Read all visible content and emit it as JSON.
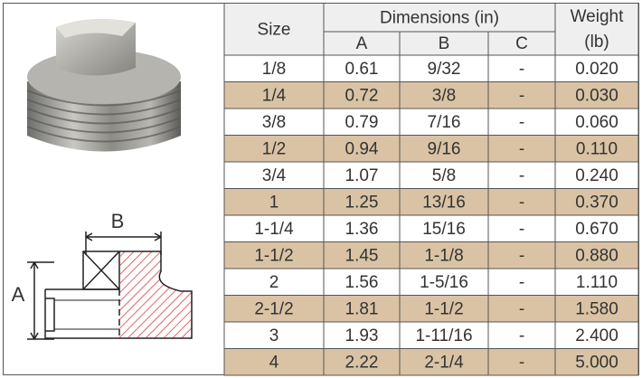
{
  "diagram": {
    "label_a": "A",
    "label_b": "B"
  },
  "table": {
    "header": {
      "size": "Size",
      "dimensions": "Dimensions (in)",
      "a": "A",
      "b": "B",
      "c": "C",
      "weight_line1": "Weight",
      "weight_line2": "(lb)"
    },
    "rows": [
      [
        "1/8",
        "0.61",
        "9/32",
        "-",
        "0.020"
      ],
      [
        "1/4",
        "0.72",
        "3/8",
        "-",
        "0.030"
      ],
      [
        "3/8",
        "0.79",
        "7/16",
        "-",
        "0.060"
      ],
      [
        "1/2",
        "0.94",
        "9/16",
        "-",
        "0.110"
      ],
      [
        "3/4",
        "1.07",
        "5/8",
        "-",
        "0.240"
      ],
      [
        "1",
        "1.25",
        "13/16",
        "-",
        "0.370"
      ],
      [
        "1-1/4",
        "1.36",
        "15/16",
        "-",
        "0.670"
      ],
      [
        "1-1/2",
        "1.45",
        "1-1/8",
        "-",
        "0.880"
      ],
      [
        "2",
        "1.56",
        "1-5/16",
        "-",
        "1.110"
      ],
      [
        "2-1/2",
        "1.81",
        "1-1/2",
        "-",
        "1.580"
      ],
      [
        "3",
        "1.93",
        "1-11/16",
        "-",
        "2.400"
      ],
      [
        "4",
        "2.22",
        "2-1/4",
        "-",
        "5.000"
      ]
    ]
  }
}
